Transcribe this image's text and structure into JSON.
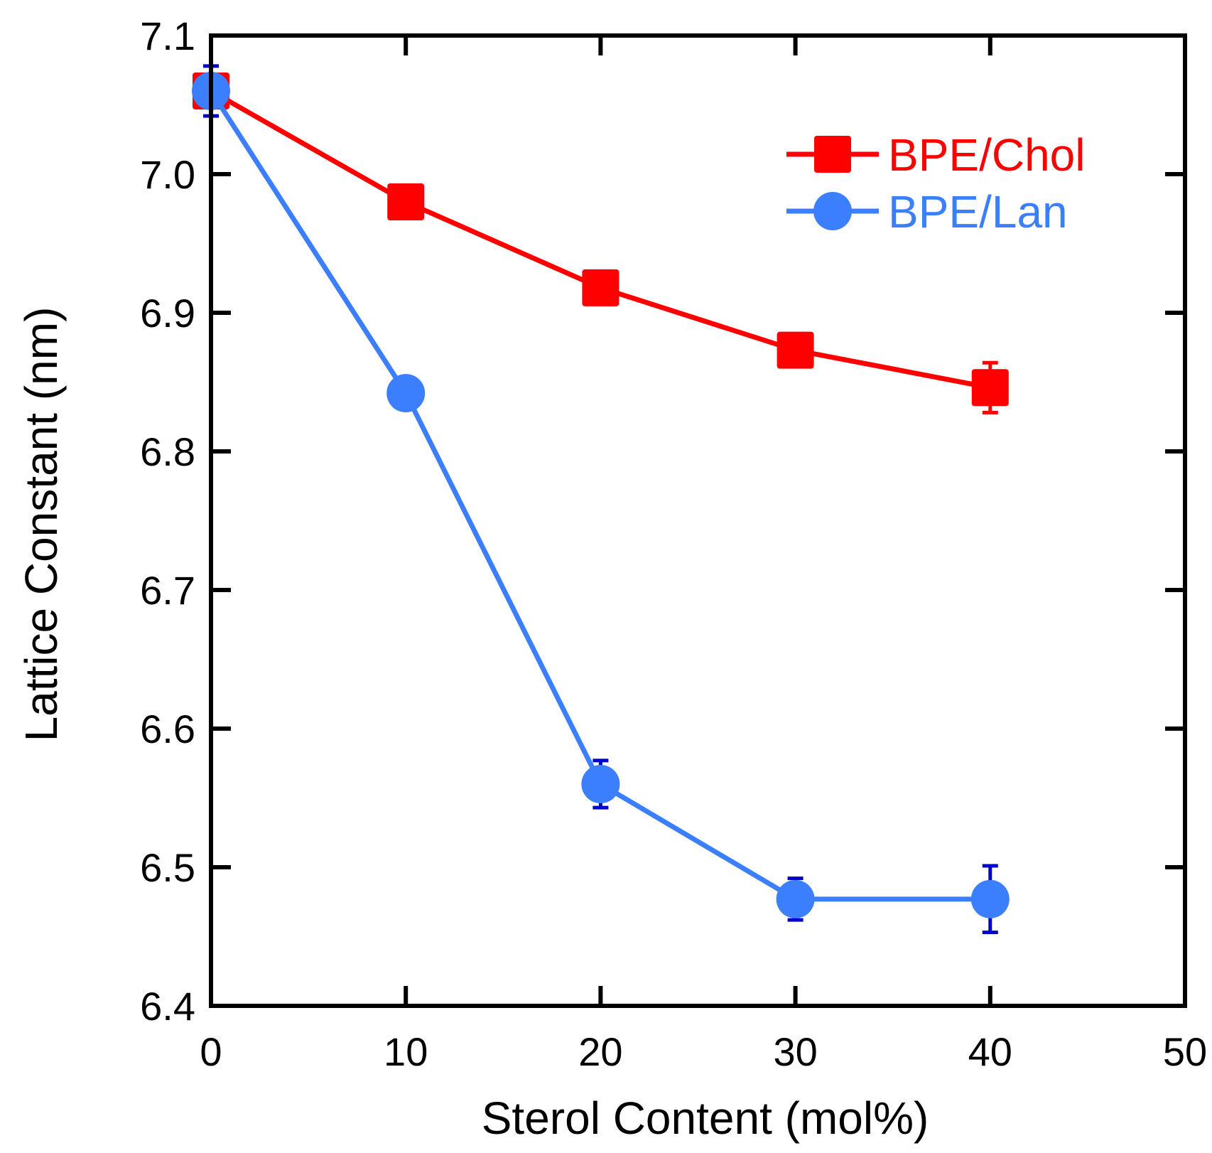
{
  "chart_data": {
    "type": "line",
    "title": "",
    "xlabel": "Sterol Content  (mol%)",
    "ylabel": "Lattice Constant (nm)",
    "xlim": [
      0,
      50
    ],
    "ylim": [
      6.4,
      7.1
    ],
    "x_ticks": [
      0,
      10,
      20,
      30,
      40,
      50
    ],
    "x_tick_labels": [
      "0",
      "10",
      "20",
      "30",
      "40",
      "50"
    ],
    "y_ticks": [
      6.4,
      6.5,
      6.6,
      6.7,
      6.8,
      6.9,
      7.0,
      7.1
    ],
    "y_tick_labels": [
      "6.4",
      "6.5",
      "6.6",
      "6.7",
      "6.8",
      "6.9",
      "7.0",
      "7.1"
    ],
    "grid": false,
    "legend_position": "top-right",
    "series": [
      {
        "name": "BPE/Chol",
        "color": "#ff0000",
        "error_color": "#ff0000",
        "marker": "square",
        "x": [
          0,
          10,
          20,
          30,
          40
        ],
        "y": [
          7.06,
          6.98,
          6.918,
          6.873,
          6.846
        ],
        "yerr": [
          0.005,
          0.005,
          0.005,
          0.005,
          0.018
        ]
      },
      {
        "name": "BPE/Lan",
        "color": "#3b7fff",
        "error_color": "#0000cc",
        "marker": "circle",
        "x": [
          0,
          10,
          20,
          30,
          40
        ],
        "y": [
          7.06,
          6.842,
          6.56,
          6.477,
          6.477
        ],
        "yerr": [
          0.018,
          0.005,
          0.017,
          0.015,
          0.024
        ]
      }
    ]
  }
}
